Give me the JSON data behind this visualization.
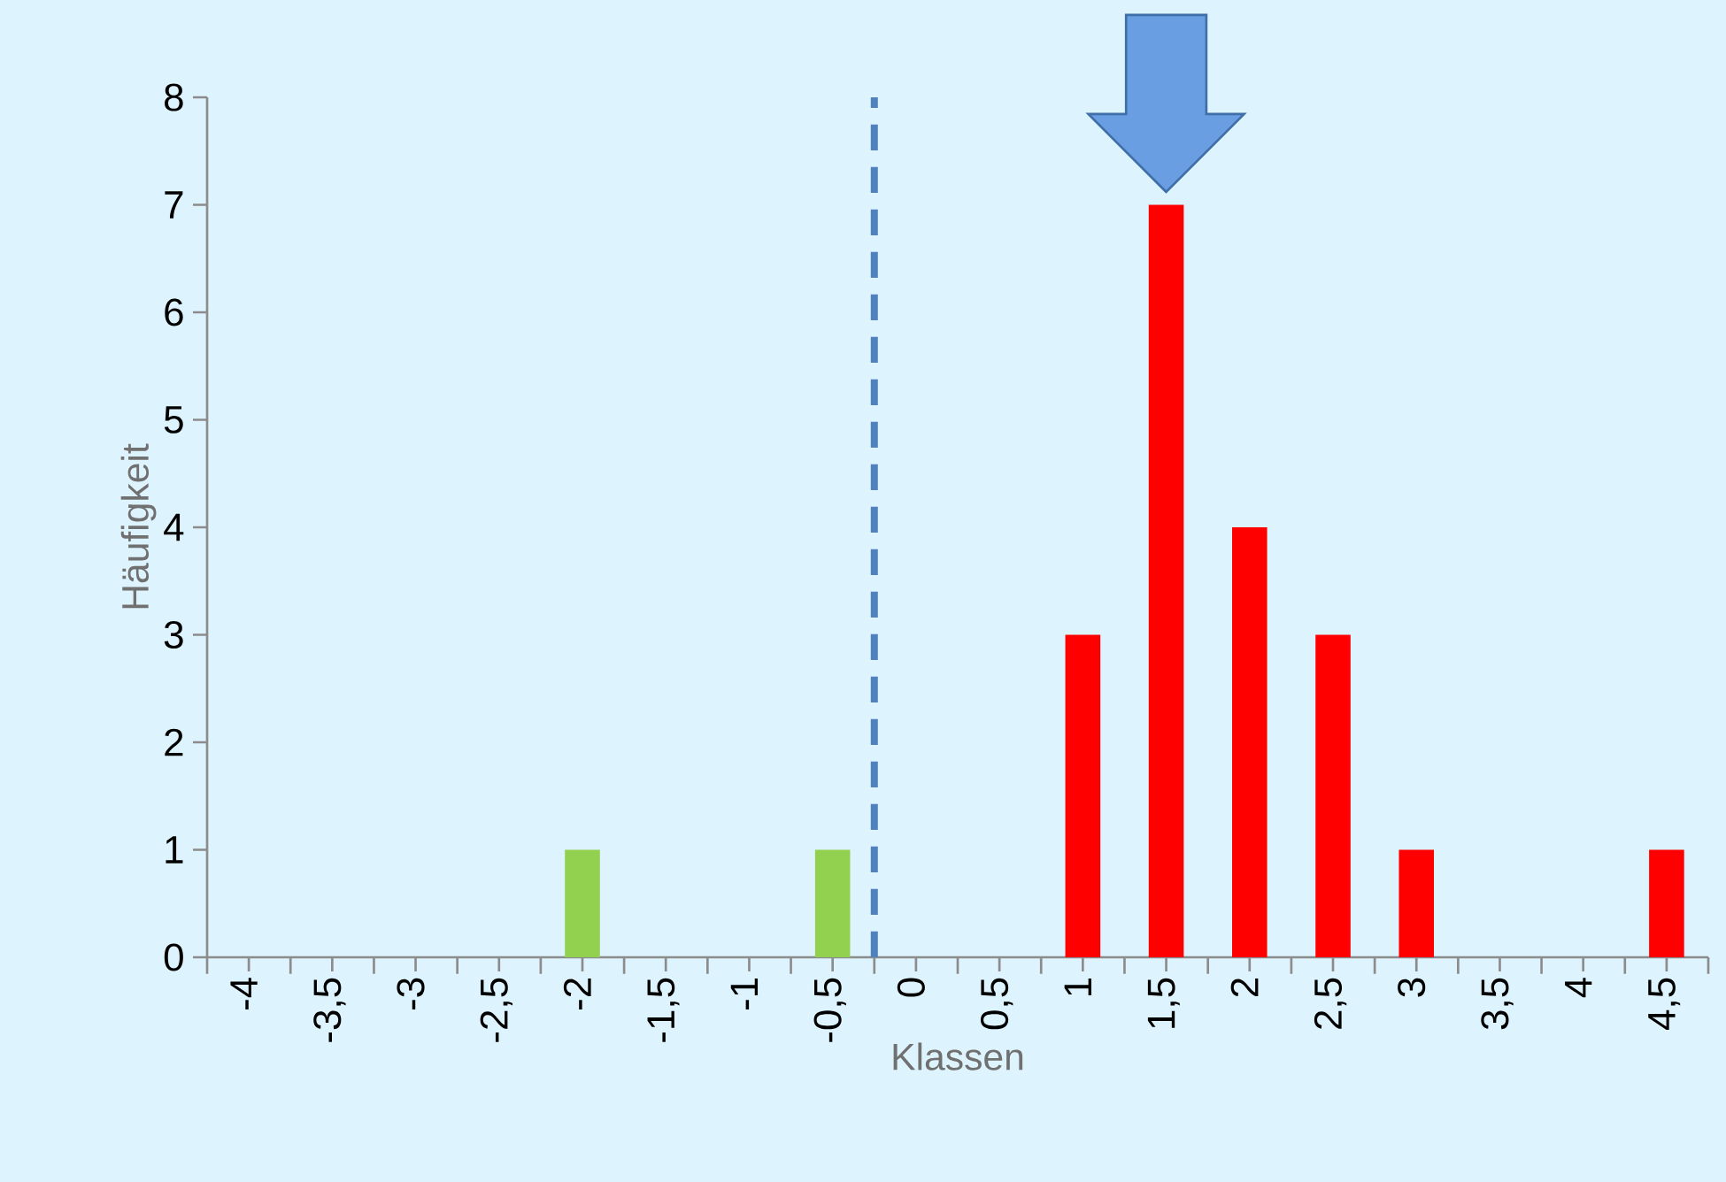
{
  "chart_data": {
    "type": "bar",
    "xlabel": "Klassen",
    "ylabel": "Häufigkeit",
    "x": [
      -4,
      -3.5,
      -3,
      -2.5,
      -2,
      -1.5,
      -1,
      -0.5,
      0,
      0.5,
      1,
      1.5,
      2,
      2.5,
      3,
      3.5,
      4,
      4.5
    ],
    "values": [
      0,
      0,
      0,
      0,
      1,
      0,
      0,
      1,
      0,
      0,
      3,
      7,
      4,
      3,
      1,
      0,
      0,
      1
    ],
    "colors": [
      "#92d050",
      "#92d050",
      "#92d050",
      "#92d050",
      "#92d050",
      "#92d050",
      "#92d050",
      "#92d050",
      "#ff0000",
      "#ff0000",
      "#ff0000",
      "#ff0000",
      "#ff0000",
      "#ff0000",
      "#ff0000",
      "#ff0000",
      "#ff0000",
      "#ff0000"
    ],
    "xlim": [
      -4.25,
      4.75
    ],
    "xticks": [
      {
        "value": -4,
        "label": "-4"
      },
      {
        "value": -3.5,
        "label": "-3,5"
      },
      {
        "value": -3,
        "label": "-3"
      },
      {
        "value": -2.5,
        "label": "-2,5"
      },
      {
        "value": -2,
        "label": "-2"
      },
      {
        "value": -1.5,
        "label": "-1,5"
      },
      {
        "value": -1,
        "label": "-1"
      },
      {
        "value": -0.5,
        "label": "-0,5"
      },
      {
        "value": 0,
        "label": "0"
      },
      {
        "value": 0.5,
        "label": "0,5"
      },
      {
        "value": 1,
        "label": "1"
      },
      {
        "value": 1.5,
        "label": "1,5"
      },
      {
        "value": 2,
        "label": "2"
      },
      {
        "value": 2.5,
        "label": "2,5"
      },
      {
        "value": 3,
        "label": "3"
      },
      {
        "value": 3.5,
        "label": "3,5"
      },
      {
        "value": 4,
        "label": "4"
      },
      {
        "value": 4.5,
        "label": "4,5"
      }
    ],
    "ylim": [
      0,
      8
    ],
    "yticks": [
      0,
      1,
      2,
      3,
      4,
      5,
      6,
      7,
      8
    ],
    "ref_lines": [
      {
        "axis": "x",
        "value": -0.25,
        "color": "#4f81bd",
        "line_style": "dashed"
      }
    ]
  }
}
